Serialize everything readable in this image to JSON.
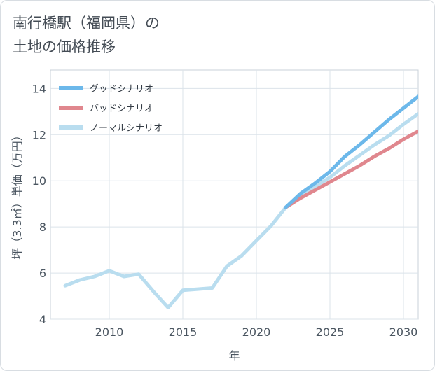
{
  "title": "南行橋駅（福岡県）の\n土地の価格推移",
  "chart_data": {
    "type": "line",
    "xlabel": "年",
    "ylabel": "坪（3.3㎡）単価（万円）",
    "xlim": [
      2006.0,
      2031.0
    ],
    "ylim": [
      4,
      14.8
    ],
    "xticks": [
      2010,
      2015,
      2020,
      2025,
      2030
    ],
    "yticks": [
      4,
      6,
      8,
      10,
      12,
      14
    ],
    "legend_position": "top-left",
    "series": [
      {
        "name": "グッドシナリオ",
        "color": "#6cb8ea",
        "x": [
          2022,
          2023,
          2024,
          2025,
          2026,
          2027,
          2028,
          2029,
          2030,
          2031
        ],
        "y": [
          8.85,
          9.45,
          9.9,
          10.4,
          11.05,
          11.55,
          12.1,
          12.65,
          13.15,
          13.65
        ]
      },
      {
        "name": "バッドシナリオ",
        "color": "#e0878e",
        "x": [
          2022,
          2023,
          2024,
          2025,
          2026,
          2027,
          2028,
          2029,
          2030,
          2031
        ],
        "y": [
          8.85,
          9.25,
          9.6,
          9.95,
          10.3,
          10.65,
          11.05,
          11.4,
          11.8,
          12.15
        ]
      },
      {
        "name": "ノーマルシナリオ",
        "color": "#b9ddef",
        "x": [
          2007,
          2008,
          2009,
          2010,
          2011,
          2012,
          2013,
          2014,
          2015,
          2016,
          2017,
          2018,
          2019,
          2020,
          2021,
          2022,
          2023,
          2024,
          2025,
          2026,
          2027,
          2028,
          2029,
          2030,
          2031
        ],
        "y": [
          5.45,
          5.7,
          5.85,
          6.1,
          5.85,
          5.95,
          5.2,
          4.5,
          5.25,
          5.3,
          5.35,
          6.3,
          6.75,
          7.4,
          8.05,
          8.85,
          9.35,
          9.75,
          10.15,
          10.65,
          11.1,
          11.55,
          11.95,
          12.45,
          12.9
        ]
      }
    ]
  }
}
